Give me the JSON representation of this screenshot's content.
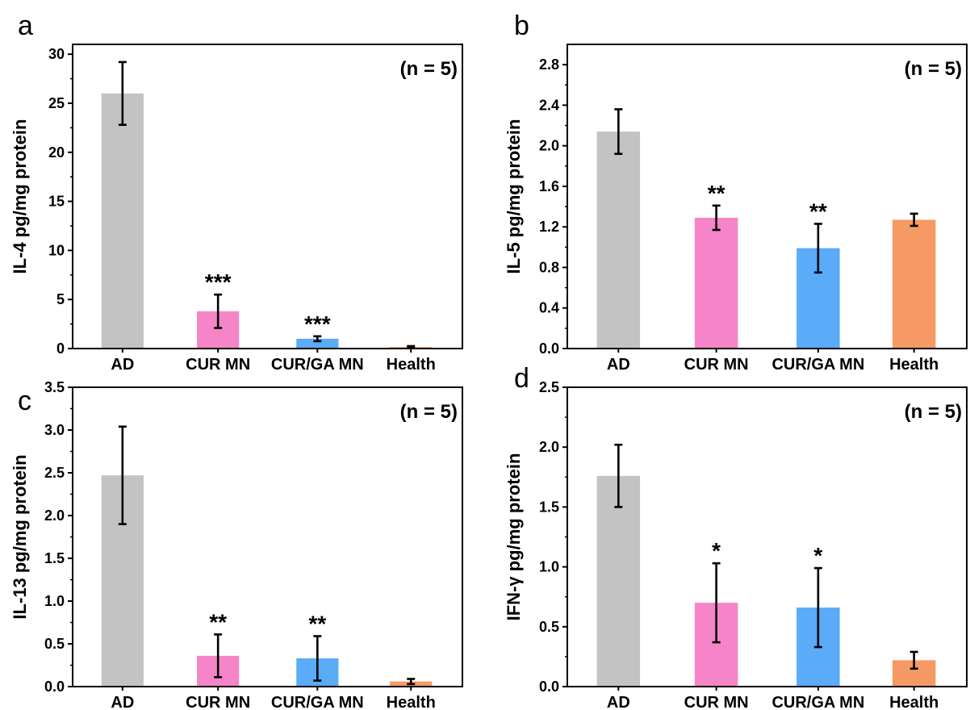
{
  "colors": {
    "AD": "#c3c3c3",
    "CUR MN": "#f585c8",
    "CUR/GA MN": "#5aabf8",
    "Health": "#f59a64"
  },
  "chart_data": [
    {
      "panel_label": "a",
      "type": "bar",
      "categories": [
        "AD",
        "CUR MN",
        "CUR/GA MN",
        "Health"
      ],
      "values": [
        26.0,
        3.8,
        1.0,
        0.15
      ],
      "errors": [
        3.2,
        1.7,
        0.25,
        0.1
      ],
      "significance": [
        "",
        "***",
        "***",
        ""
      ],
      "ylabel": "IL-4 pg/mg protein",
      "ylim": [
        0,
        31
      ],
      "yticks": [
        0,
        5,
        10,
        15,
        20,
        25,
        30
      ],
      "ytick_labels": [
        "0",
        "5",
        "10",
        "15",
        "20",
        "25",
        "30"
      ],
      "annotation": "(n = 5)"
    },
    {
      "panel_label": "b",
      "type": "bar",
      "categories": [
        "AD",
        "CUR MN",
        "CUR/GA MN",
        "Health"
      ],
      "values": [
        2.14,
        1.29,
        0.99,
        1.27
      ],
      "errors": [
        0.22,
        0.12,
        0.24,
        0.06
      ],
      "significance": [
        "",
        "**",
        "**",
        ""
      ],
      "ylabel": "IL-5 pg/mg protein",
      "ylim": [
        0,
        3.0
      ],
      "yticks": [
        0,
        0.4,
        0.8,
        1.2,
        1.6,
        2.0,
        2.4,
        2.8
      ],
      "ytick_labels": [
        "0.0",
        "0.4",
        "0.8",
        "1.2",
        "1.6",
        "2.0",
        "2.4",
        "2.8"
      ],
      "annotation": "(n = 5)"
    },
    {
      "panel_label": "c",
      "type": "bar",
      "categories": [
        "AD",
        "CUR MN",
        "CUR/GA MN",
        "Health"
      ],
      "values": [
        2.47,
        0.36,
        0.33,
        0.06
      ],
      "errors": [
        0.57,
        0.25,
        0.26,
        0.03
      ],
      "significance": [
        "",
        "**",
        "**",
        ""
      ],
      "ylabel": "IL-13 pg/mg protein",
      "ylim": [
        0,
        3.5
      ],
      "yticks": [
        0,
        0.5,
        1.0,
        1.5,
        2.0,
        2.5,
        3.0,
        3.5
      ],
      "ytick_labels": [
        "0.0",
        "0.5",
        "1.0",
        "1.5",
        "2.0",
        "2.5",
        "3.0",
        "3.5"
      ],
      "annotation": "(n = 5)"
    },
    {
      "panel_label": "d",
      "type": "bar",
      "categories": [
        "AD",
        "CUR MN",
        "CUR/GA MN",
        "Health"
      ],
      "values": [
        1.76,
        0.7,
        0.66,
        0.22
      ],
      "errors": [
        0.26,
        0.33,
        0.33,
        0.07
      ],
      "significance": [
        "",
        "*",
        "*",
        ""
      ],
      "ylabel": "IFN-γ pg/mg protein",
      "ylim": [
        0,
        2.5
      ],
      "yticks": [
        0,
        0.5,
        1.0,
        1.5,
        2.0,
        2.5
      ],
      "ytick_labels": [
        "0.0",
        "0.5",
        "1.0",
        "1.5",
        "2.0",
        "2.5"
      ],
      "annotation": "(n = 5)"
    }
  ]
}
